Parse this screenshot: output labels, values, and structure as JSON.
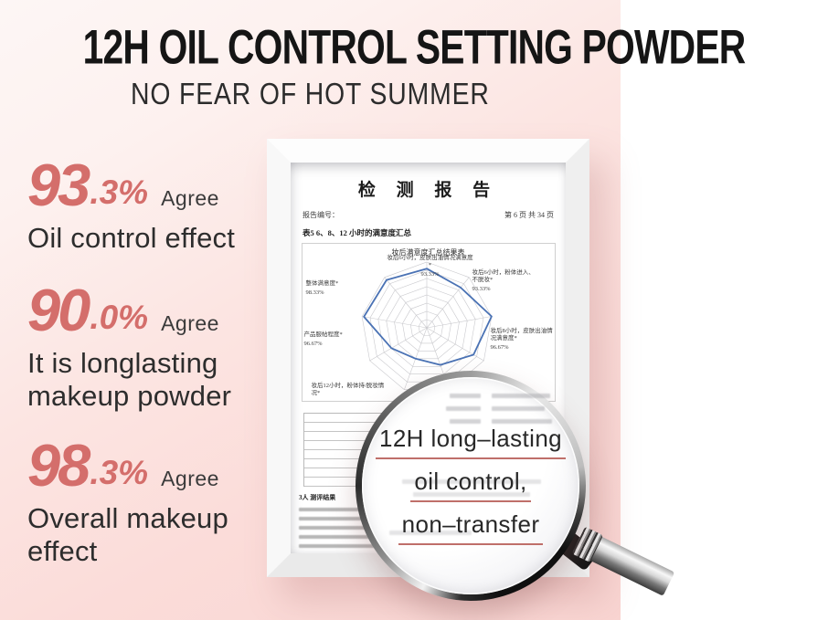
{
  "header": {
    "title": "12H OIL CONTROL SETTING POWDER",
    "subtitle": "NO FEAR OF HOT SUMMER"
  },
  "stats": [
    {
      "value_int": "93",
      "value_dec": ".3%",
      "agree_label": "Agree",
      "label": "Oil control effect"
    },
    {
      "value_int": "90",
      "value_dec": ".0%",
      "agree_label": "Agree",
      "label": "It is longlasting makeup powder"
    },
    {
      "value_int": "98",
      "value_dec": ".3%",
      "agree_label": "Agree",
      "label": "Overall makeup effect"
    }
  ],
  "report": {
    "title": "检 测 报 告",
    "report_no_label": "报告编号：",
    "page_info": "第 6 页 共 34 页",
    "section_line": "表5  6、8、12 小时的满意度汇总",
    "chart_box_title": "妆后满意度汇总结果表",
    "para_heading": "3人 测评结果",
    "radar_labels": [
      {
        "text": "妆后6小时，皮肤出油情况满意度*",
        "value": "93.33%"
      },
      {
        "text": "妆后6小时，粉体进入、不脱妆*",
        "value": "93.33%"
      },
      {
        "text": "妆后8小时，皮肤出油情况满意度*",
        "value": "96.67%"
      },
      {
        "text": "整体满意度*",
        "value": "98.33%"
      },
      {
        "text": "产品服帖程度*",
        "value": "96.67%"
      },
      {
        "text": "妆后12小时，粉体持/脱妆情况*",
        "value": ""
      }
    ]
  },
  "magnifier": {
    "lines": [
      "12H long–lasting",
      "oil control,",
      "non–transfer"
    ]
  },
  "chart_data": {
    "type": "radar",
    "title": "妆后满意度汇总结果表",
    "axes_count": 9,
    "rings": 8,
    "polygon_fractions": [
      0.9,
      0.8,
      1.0,
      0.82,
      0.6,
      0.5,
      0.62,
      0.97,
      0.95
    ],
    "known_axis_values": {
      "top": "93.33%",
      "upper_right": "93.33%",
      "right": "96.67%",
      "left": "96.67%",
      "upper_left": "98.33%"
    },
    "legend": "none",
    "line_color": "#4a72b4",
    "grid_color": "#c9c9cd"
  },
  "colors": {
    "accent_pink": "#d46e6b",
    "underline_red": "#bf6f6a",
    "radar_blue": "#4a72b4",
    "background_pink": "#fbdcd9"
  }
}
